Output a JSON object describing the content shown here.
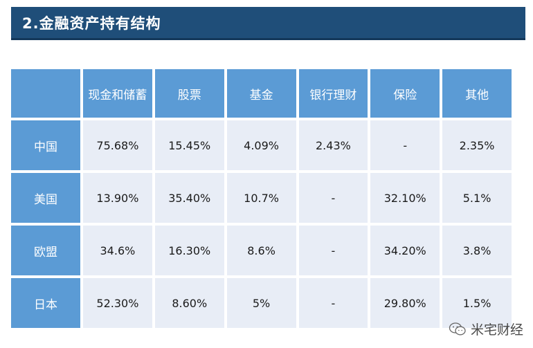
{
  "title": "2.金融资产持有结构",
  "table": {
    "headers": [
      "",
      "现金和储蓄",
      "股票",
      "基金",
      "银行理财",
      "保险",
      "其他"
    ],
    "rows": [
      {
        "label": "中国",
        "cells": [
          "75.68%",
          "15.45%",
          "4.09%",
          "2.43%",
          "-",
          "2.35%"
        ]
      },
      {
        "label": "美国",
        "cells": [
          "13.90%",
          "35.40%",
          "10.7%",
          "-",
          "32.10%",
          "5.1%"
        ]
      },
      {
        "label": "欧盟",
        "cells": [
          "34.6%",
          "16.30%",
          "8.6%",
          "-",
          "34.20%",
          "3.8%"
        ]
      },
      {
        "label": "日本",
        "cells": [
          "52.30%",
          "8.60%",
          "5%",
          "-",
          "29.80%",
          "1.5%"
        ]
      }
    ]
  },
  "watermark": {
    "text": "米宅财经",
    "icon": "wechat-icon"
  }
}
